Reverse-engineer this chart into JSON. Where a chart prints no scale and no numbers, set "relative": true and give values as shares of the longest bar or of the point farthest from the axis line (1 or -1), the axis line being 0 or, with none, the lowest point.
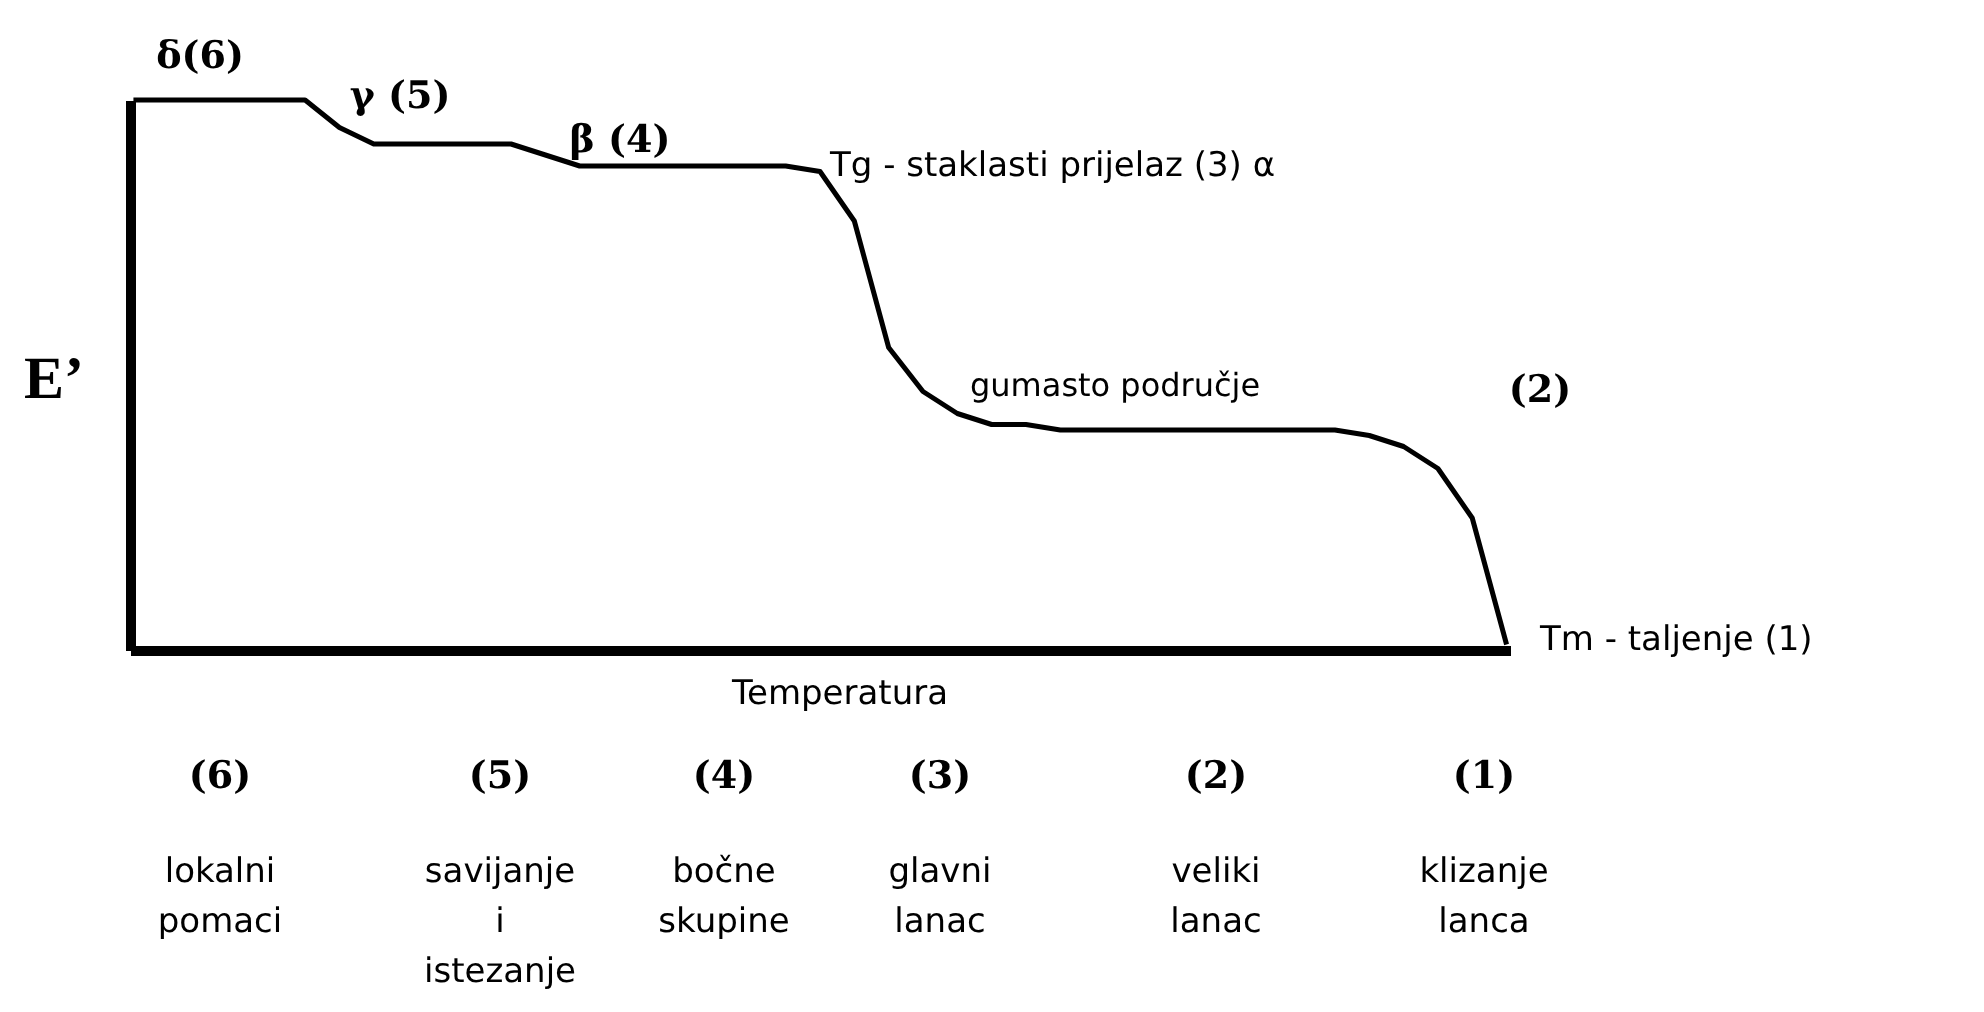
{
  "chart_data": {
    "type": "line",
    "relative": true,
    "ylabel": "E’",
    "xlabel": "Temperatura",
    "color": "#000000",
    "marker": "none",
    "line_style": "solid",
    "grid": false,
    "categories": [
      null,
      null,
      null,
      null,
      null,
      null,
      null,
      null,
      null,
      null,
      null,
      null,
      null,
      null,
      null,
      null,
      null,
      null,
      null,
      null,
      null,
      null,
      null,
      null,
      null,
      null,
      null,
      null,
      null,
      null,
      null,
      null,
      null,
      null,
      null,
      null,
      null,
      null,
      null,
      null,
      null
    ],
    "values": [
      1.0,
      1.0,
      1.0,
      1.0,
      1.0,
      1.0,
      0.95,
      0.92,
      0.92,
      0.92,
      0.92,
      0.92,
      0.9,
      0.88,
      0.88,
      0.88,
      0.88,
      0.88,
      0.88,
      0.88,
      0.87,
      0.78,
      0.55,
      0.47,
      0.43,
      0.41,
      0.41,
      0.4,
      0.4,
      0.4,
      0.4,
      0.4,
      0.4,
      0.4,
      0.4,
      0.4,
      0.39,
      0.37,
      0.33,
      0.24,
      0.01
    ],
    "annotations": [
      "δ(6)",
      "γ (5)",
      "β (4)",
      "Tg - staklasti prijelaz (3)  α",
      "gumasto područje",
      "(2)",
      "Tm - taljenje (1)",
      "(6)",
      "lokalni pomaci",
      "(5)",
      "savijanje i istezanje",
      "(4)",
      "bočne skupine",
      "(3)",
      "glavni lanac",
      "(2)",
      "veliki lanac",
      "(1)",
      "klizanje lanca"
    ]
  }
}
